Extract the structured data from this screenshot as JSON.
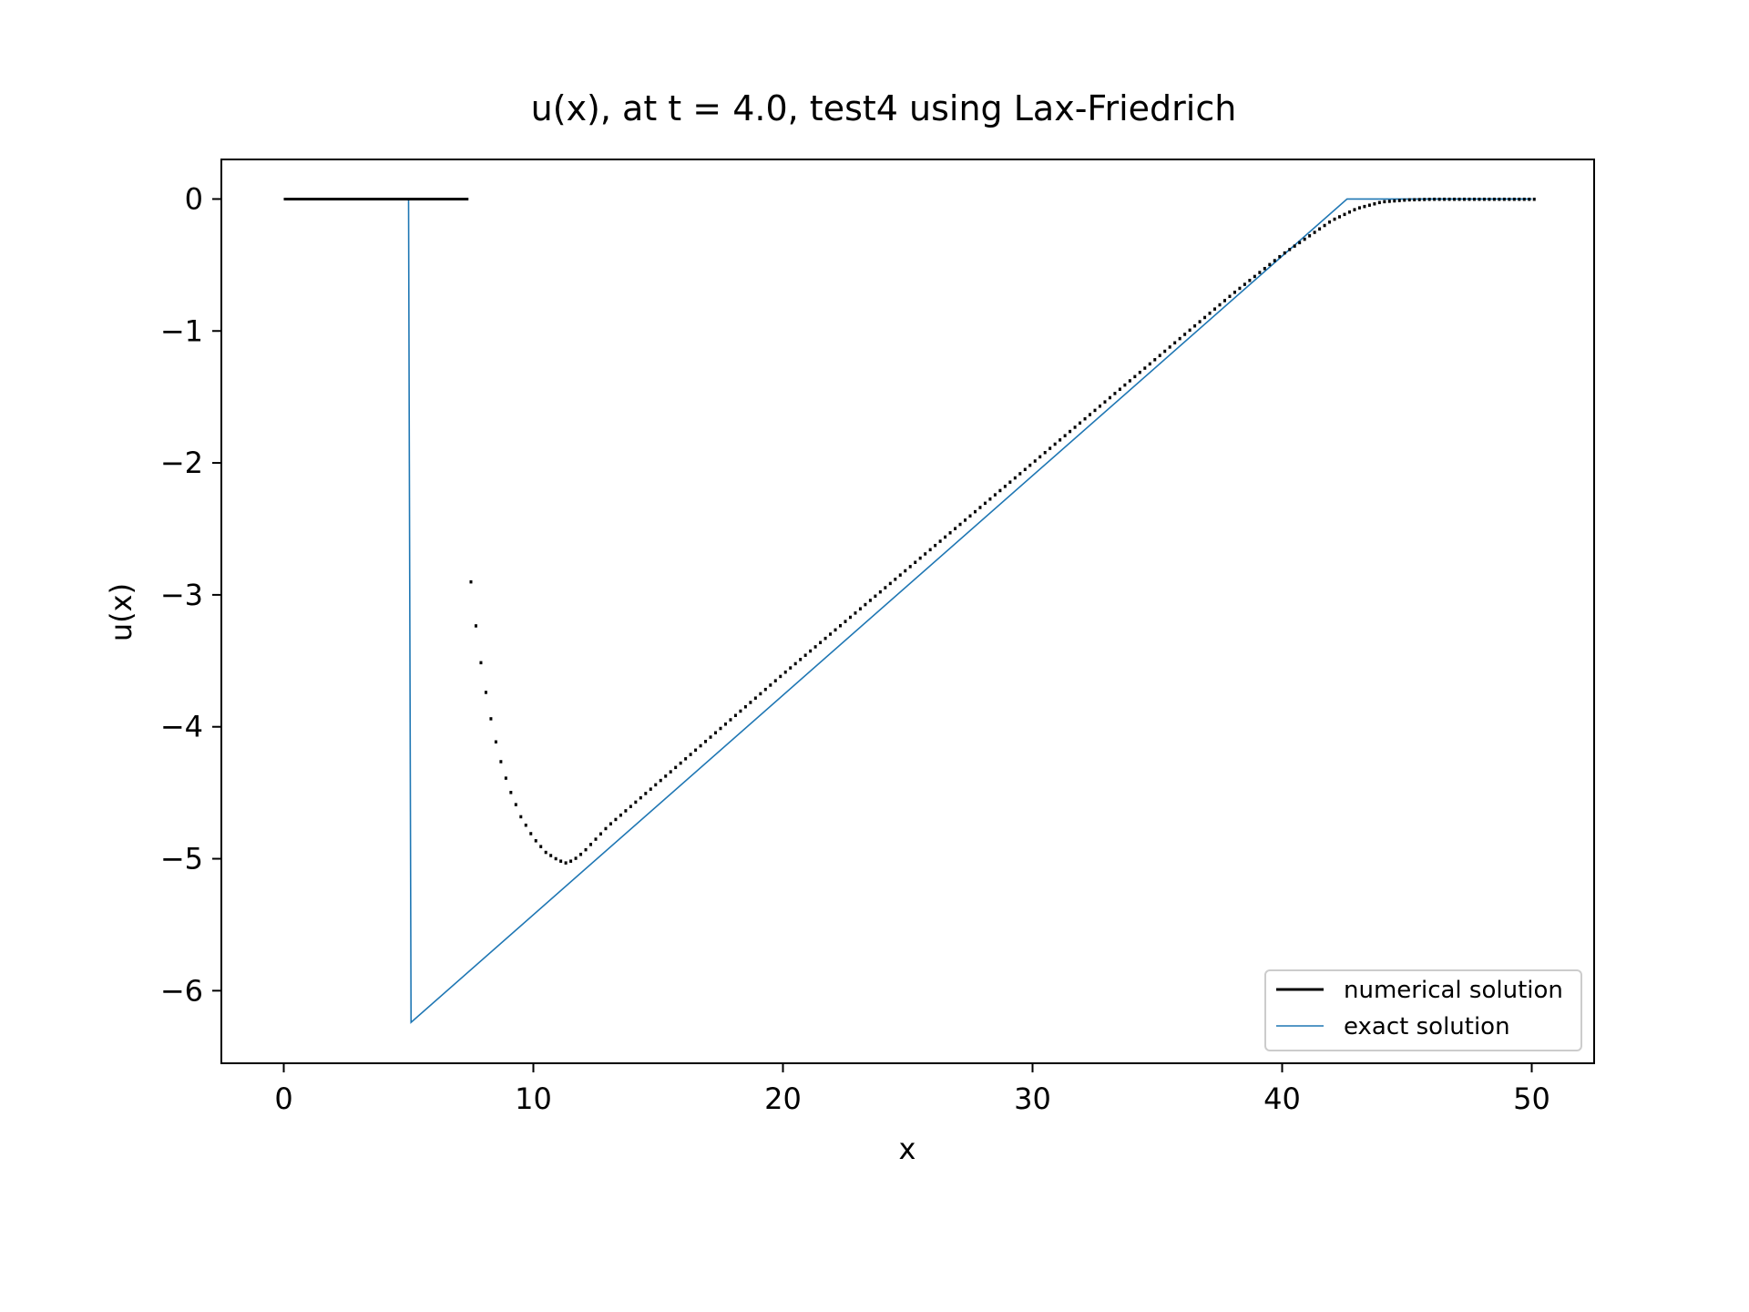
{
  "chart_data": {
    "type": "line",
    "title": "u(x), at t = 4.0, test4 using Lax-Friedrich",
    "xlabel": "x",
    "ylabel": "u(x)",
    "xlim": [
      -2.5,
      52.5
    ],
    "ylim": [
      -6.55,
      0.3
    ],
    "xticks": [
      0,
      10,
      20,
      30,
      40,
      50
    ],
    "yticks": [
      0,
      -1,
      -2,
      -3,
      -4,
      -5,
      -6
    ],
    "xtick_labels": [
      "0",
      "10",
      "20",
      "30",
      "40",
      "50"
    ],
    "ytick_labels": [
      "0",
      "−1",
      "−2",
      "−3",
      "−4",
      "−5",
      "−6"
    ],
    "grid": false,
    "legend": "bottom-right",
    "series": [
      {
        "name": "numerical solution",
        "style": "points",
        "color": "#000000",
        "dx": 0.2,
        "segments": [
          {
            "kind": "zero",
            "x_start": 0,
            "x_end": 7.4
          },
          {
            "kind": "curve",
            "knots": [
              [
                7.5,
                -2.9
              ],
              [
                7.8,
                -3.4
              ],
              [
                8.2,
                -3.85
              ],
              [
                8.6,
                -4.2
              ],
              [
                9.0,
                -4.45
              ],
              [
                9.5,
                -4.68
              ],
              [
                10.0,
                -4.84
              ],
              [
                10.5,
                -4.95
              ],
              [
                11.0,
                -5.01
              ],
              [
                11.3,
                -5.03
              ],
              [
                11.6,
                -5.01
              ],
              [
                12.0,
                -4.95
              ],
              [
                13.0,
                -4.75
              ],
              [
                20.0,
                -3.6
              ],
              [
                30.0,
                -2.0
              ],
              [
                35.0,
                -1.2
              ],
              [
                38.0,
                -0.72
              ],
              [
                40.0,
                -0.42
              ],
              [
                41.0,
                -0.29
              ],
              [
                42.0,
                -0.16
              ],
              [
                43.0,
                -0.07
              ],
              [
                44.0,
                -0.02
              ],
              [
                45.0,
                -0.005
              ],
              [
                46.0,
                0.0
              ],
              [
                50.0,
                0.0
              ]
            ]
          }
        ]
      },
      {
        "name": "exact solution",
        "style": "line",
        "color": "#1f77b4",
        "x": [
          0,
          5.0,
          5.1,
          42.6,
          50
        ],
        "y": [
          0,
          0,
          -6.24,
          0,
          0
        ]
      }
    ]
  }
}
